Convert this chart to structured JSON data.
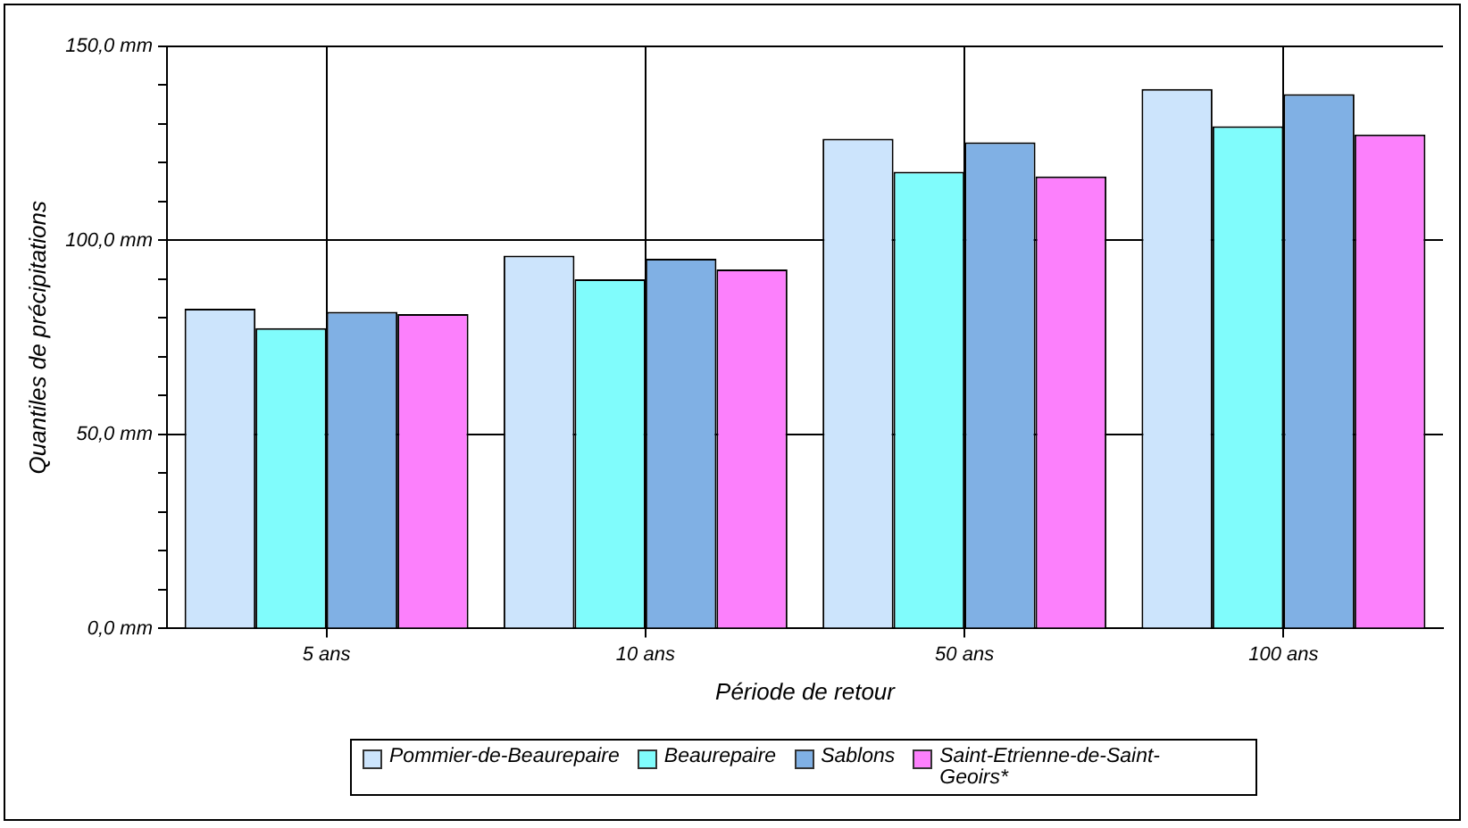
{
  "chart_data": {
    "type": "bar",
    "xlabel": "Période de retour",
    "ylabel": "Quantiles de précipitations",
    "categories": [
      "5 ans",
      "10 ans",
      "50 ans",
      "100 ans"
    ],
    "series": [
      {
        "name": "Pommier-de-Beaurepaire",
        "color": "#cce4fc",
        "values": [
          82.4,
          96.1,
          126.2,
          139.0
        ]
      },
      {
        "name": "Beaurepaire",
        "color": "#80fcfc",
        "values": [
          77.4,
          90.0,
          117.7,
          129.4
        ]
      },
      {
        "name": "Sablons",
        "color": "#80b0e4",
        "values": [
          81.6,
          95.3,
          125.3,
          137.7
        ]
      },
      {
        "name": "Saint-Etrienne-de-Saint-Geoirs*",
        "color": "#fc80fc",
        "values": [
          81.0,
          92.5,
          116.5,
          127.3
        ]
      }
    ],
    "ylim": [
      0,
      150
    ],
    "yticks": [
      {
        "value": 0,
        "label": "0,0 mm"
      },
      {
        "value": 10,
        "label": null
      },
      {
        "value": 20,
        "label": null
      },
      {
        "value": 30,
        "label": null
      },
      {
        "value": 40,
        "label": null
      },
      {
        "value": 50,
        "label": "50,0 mm"
      },
      {
        "value": 60,
        "label": null
      },
      {
        "value": 70,
        "label": null
      },
      {
        "value": 80,
        "label": null
      },
      {
        "value": 90,
        "label": null
      },
      {
        "value": 100,
        "label": "100,0 mm"
      },
      {
        "value": 110,
        "label": null
      },
      {
        "value": 120,
        "label": null
      },
      {
        "value": 130,
        "label": null
      },
      {
        "value": 140,
        "label": null
      },
      {
        "value": 150,
        "label": "150,0 mm"
      }
    ],
    "grid": true,
    "legend": "bottom"
  }
}
